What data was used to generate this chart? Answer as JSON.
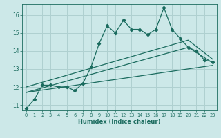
{
  "title": "",
  "xlabel": "Humidex (Indice chaleur)",
  "ylabel": "",
  "bg_color": "#cce8e8",
  "line_color": "#1a6b5e",
  "grid_color": "#afd0d0",
  "xlim": [
    -0.5,
    23.5
  ],
  "ylim": [
    10.7,
    16.6
  ],
  "yticks": [
    11,
    12,
    13,
    14,
    15,
    16
  ],
  "xticks": [
    0,
    1,
    2,
    3,
    4,
    5,
    6,
    7,
    8,
    9,
    10,
    11,
    12,
    13,
    14,
    15,
    16,
    17,
    18,
    19,
    20,
    21,
    22,
    23
  ],
  "main_x": [
    0,
    1,
    2,
    3,
    4,
    5,
    6,
    7,
    8,
    9,
    10,
    11,
    12,
    13,
    14,
    15,
    16,
    17,
    18,
    19,
    20,
    21,
    22,
    23
  ],
  "main_y": [
    10.8,
    11.3,
    12.1,
    12.1,
    12.0,
    12.0,
    11.8,
    12.2,
    13.1,
    14.4,
    15.4,
    15.0,
    15.7,
    15.2,
    15.2,
    14.9,
    15.2,
    16.4,
    15.2,
    14.7,
    14.2,
    14.0,
    13.5,
    13.4
  ],
  "trend1_x": [
    0,
    20,
    23
  ],
  "trend1_y": [
    11.7,
    14.2,
    13.35
  ],
  "trend2_x": [
    0,
    23
  ],
  "trend2_y": [
    11.7,
    13.2
  ],
  "trend3_x": [
    0,
    20,
    23
  ],
  "trend3_y": [
    12.0,
    14.6,
    13.55
  ]
}
